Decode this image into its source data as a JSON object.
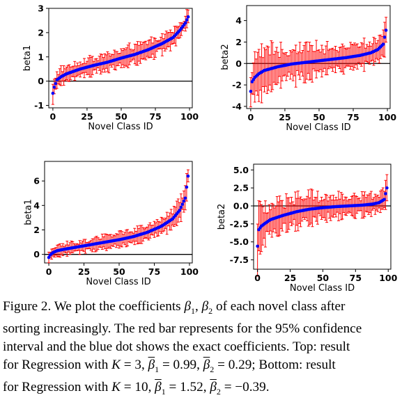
{
  "chart_data": [
    {
      "type": "scatter",
      "panel": "top-left",
      "xlabel": "Novel Class ID",
      "ylabel": "beta1",
      "xlim": [
        -3,
        102
      ],
      "ylim": [
        -1.1,
        3.0
      ],
      "xticks": [
        "0",
        "25",
        "50",
        "75",
        "100"
      ],
      "xtick_values": [
        0,
        25,
        50,
        75,
        100
      ],
      "yticks": [
        "-1",
        "0",
        "1",
        "2",
        "3"
      ],
      "ytick_values": [
        -1,
        0,
        1,
        2,
        3
      ],
      "hline": 0,
      "n_points": 100,
      "coef_anchors": {
        "x": [
          0,
          1,
          3,
          6,
          10,
          20,
          30,
          40,
          50,
          60,
          70,
          80,
          88,
          93,
          97,
          99
        ],
        "y": [
          -0.5,
          -0.25,
          0.05,
          0.18,
          0.3,
          0.5,
          0.65,
          0.78,
          0.95,
          1.1,
          1.3,
          1.55,
          1.8,
          2.1,
          2.4,
          2.65
        ]
      },
      "ci_halfwidth_anchors": {
        "x": [
          0,
          5,
          30,
          70,
          90,
          99
        ],
        "y": [
          0.35,
          0.3,
          0.3,
          0.32,
          0.3,
          0.25
        ]
      },
      "colors": {
        "coef": "#0000ff",
        "ci": "#ff0000"
      }
    },
    {
      "type": "scatter",
      "panel": "top-right",
      "xlabel": "Novel Class ID",
      "ylabel": "beta2",
      "xlim": [
        -3,
        102
      ],
      "ylim": [
        -4.2,
        5.4
      ],
      "xticks": [
        "0",
        "25",
        "50",
        "75",
        "100"
      ],
      "xtick_values": [
        0,
        25,
        50,
        75,
        100
      ],
      "yticks": [
        "-4",
        "-2",
        "0",
        "2",
        "4"
      ],
      "ytick_values": [
        -4,
        -2,
        0,
        2,
        4
      ],
      "hline": 0,
      "n_points": 100,
      "coef_anchors": {
        "x": [
          0,
          1,
          3,
          6,
          10,
          20,
          30,
          40,
          50,
          60,
          70,
          80,
          88,
          93,
          97,
          99
        ],
        "y": [
          -2.6,
          -1.7,
          -1.3,
          -0.95,
          -0.65,
          -0.3,
          -0.05,
          0.1,
          0.25,
          0.4,
          0.55,
          0.75,
          1.0,
          1.3,
          1.8,
          3.1
        ]
      },
      "ci_halfwidth_anchors": {
        "x": [
          0,
          5,
          30,
          70,
          90,
          99
        ],
        "y": [
          1.2,
          2.0,
          1.4,
          1.0,
          1.0,
          1.2
        ]
      },
      "colors": {
        "coef": "#0000ff",
        "ci": "#ff0000"
      }
    },
    {
      "type": "scatter",
      "panel": "bottom-left",
      "xlabel": "Novel Class ID",
      "ylabel": "beta1",
      "xlim": [
        -3,
        102
      ],
      "ylim": [
        -0.7,
        7.6
      ],
      "xticks": [
        "0",
        "25",
        "50",
        "75",
        "100"
      ],
      "xtick_values": [
        0,
        25,
        50,
        75,
        100
      ],
      "yticks": [
        "0",
        "2",
        "4",
        "6"
      ],
      "ytick_values": [
        0,
        2,
        4,
        6
      ],
      "hline": 0,
      "n_points": 100,
      "coef_anchors": {
        "x": [
          0,
          1,
          3,
          6,
          10,
          20,
          30,
          40,
          50,
          60,
          70,
          80,
          88,
          93,
          97,
          99
        ],
        "y": [
          -0.25,
          -0.05,
          0.15,
          0.3,
          0.4,
          0.6,
          0.8,
          1.0,
          1.2,
          1.45,
          1.8,
          2.3,
          2.9,
          3.6,
          4.6,
          6.4
        ]
      },
      "ci_halfwidth_anchors": {
        "x": [
          0,
          5,
          30,
          70,
          90,
          99
        ],
        "y": [
          0.4,
          0.35,
          0.45,
          0.55,
          0.7,
          0.9
        ]
      },
      "colors": {
        "coef": "#0000ff",
        "ci": "#ff0000"
      }
    },
    {
      "type": "scatter",
      "panel": "bottom-right",
      "xlabel": "Novel Class ID",
      "ylabel": "beta2",
      "xlim": [
        -3,
        102
      ],
      "ylim": [
        -8.8,
        5.8
      ],
      "xticks": [
        "0",
        "25",
        "50",
        "75",
        "100"
      ],
      "xtick_values": [
        0,
        25,
        50,
        75,
        100
      ],
      "yticks": [
        "-7.5",
        "-5.0",
        "-2.5",
        "0.0",
        "2.5",
        "5.0"
      ],
      "ytick_values": [
        -7.5,
        -5.0,
        -2.5,
        0.0,
        2.5,
        5.0
      ],
      "hline": 0,
      "n_points": 100,
      "coef_anchors": {
        "x": [
          0,
          1,
          3,
          6,
          10,
          20,
          30,
          40,
          50,
          60,
          70,
          80,
          88,
          93,
          97,
          99
        ],
        "y": [
          -5.6,
          -3.3,
          -2.8,
          -2.4,
          -1.9,
          -1.3,
          -0.8,
          -0.45,
          -0.25,
          -0.1,
          0.0,
          0.1,
          0.25,
          0.45,
          0.9,
          2.5
        ]
      },
      "ci_halfwidth_anchors": {
        "x": [
          0,
          5,
          30,
          70,
          90,
          99
        ],
        "y": [
          2.8,
          2.2,
          1.8,
          1.2,
          1.2,
          1.4
        ]
      },
      "colors": {
        "coef": "#0000ff",
        "ci": "#ff0000"
      }
    }
  ],
  "caption": {
    "lines": [
      [
        {
          "t": "Figure 2. We plot the coefficients ",
          "s": ""
        },
        {
          "t": "β",
          "s": "math"
        },
        {
          "t": "1",
          "s": "sub"
        },
        {
          "t": ", ",
          "s": ""
        },
        {
          "t": "β",
          "s": "math"
        },
        {
          "t": "2",
          "s": "sub"
        },
        {
          "t": " of each novel class after",
          "s": ""
        }
      ],
      [
        {
          "t": "sorting increasingly. The red bar represents for the 95% confidence",
          "s": ""
        }
      ],
      [
        {
          "t": "interval and the blue dot shows the exact coefficients. Top: result",
          "s": ""
        }
      ],
      [
        {
          "t": "for Regression with ",
          "s": ""
        },
        {
          "t": "K",
          "s": "math"
        },
        {
          "t": " = 3, ",
          "s": ""
        },
        {
          "t": "β",
          "s": "mathov"
        },
        {
          "t": "1",
          "s": "sub"
        },
        {
          "t": " = 0.99, ",
          "s": ""
        },
        {
          "t": "β",
          "s": "mathov"
        },
        {
          "t": "2",
          "s": "sub"
        },
        {
          "t": " = 0.29; Bottom: result",
          "s": ""
        }
      ],
      [
        {
          "t": "for Regression with ",
          "s": ""
        },
        {
          "t": "K",
          "s": "math"
        },
        {
          "t": " = 10, ",
          "s": ""
        },
        {
          "t": "β",
          "s": "mathov"
        },
        {
          "t": "1",
          "s": "sub"
        },
        {
          "t": " = 1.52, ",
          "s": ""
        },
        {
          "t": "β",
          "s": "mathov"
        },
        {
          "t": "2",
          "s": "sub"
        },
        {
          "t": " = −0.39.",
          "s": ""
        }
      ]
    ]
  }
}
